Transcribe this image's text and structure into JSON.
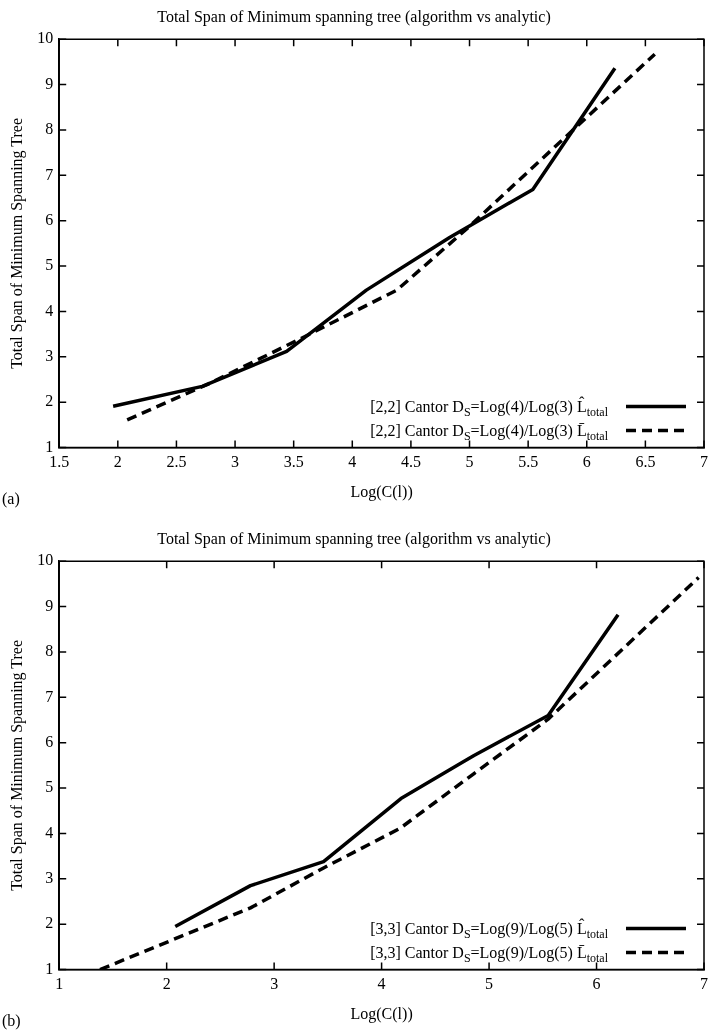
{
  "chart_data": [
    {
      "type": "line",
      "title": "Total Span of Minimum spanning tree (algorithm vs analytic)",
      "xlabel": "Log(C(l))",
      "ylabel": "Total Span of Minimum Spanning Tree",
      "xlim": [
        1.5,
        7
      ],
      "xticks": [
        1.5,
        2,
        2.5,
        3,
        3.5,
        4,
        4.5,
        5,
        5.5,
        6,
        6.5,
        7
      ],
      "ylim": [
        1,
        10
      ],
      "yticks": [
        1,
        2,
        3,
        4,
        5,
        6,
        7,
        8,
        9,
        10
      ],
      "legend": "bottom right",
      "marker": "none",
      "annotations": [
        "(a)"
      ],
      "series": [
        {
          "name": "[2,2] Cantor D$_{S}$=Log(4)/Log(3) L̂$_{total}$",
          "color": "#000000",
          "line_style": "solid",
          "x": [
            1.96,
            2.72,
            3.44,
            4.12,
            4.83,
            5.54,
            6.24
          ],
          "values": [
            1.91,
            2.35,
            3.12,
            4.47,
            5.63,
            6.69,
            9.36
          ]
        },
        {
          "name": "[2,2] Cantor D$_{S}$=Log(4)/Log(3) L̄$_{total}$",
          "color": "#000000",
          "line_style": "dashed",
          "x": [
            2.08,
            2.77,
            3.52,
            4.38,
            4.98,
            5.55,
            6.58
          ],
          "values": [
            1.61,
            2.4,
            3.35,
            4.47,
            5.83,
            7.2,
            9.67
          ]
        }
      ]
    },
    {
      "type": "line",
      "title": "Total Span of Minimum spanning tree (algorithm vs analytic)",
      "xlabel": "Log(C(l))",
      "ylabel": "Total Span of Minimum Spanning Tree",
      "xlim": [
        1,
        7
      ],
      "xticks": [
        1,
        2,
        3,
        4,
        5,
        6,
        7
      ],
      "ylim": [
        1,
        10
      ],
      "yticks": [
        1,
        2,
        3,
        4,
        5,
        6,
        7,
        8,
        9,
        10
      ],
      "legend": "bottom right",
      "marker": "none",
      "annotations": [
        "(b)"
      ],
      "series": [
        {
          "name": "[3,3] Cantor D$_{S}$=Log(9)/Log(5) L̂$_{total}$",
          "color": "#000000",
          "line_style": "solid",
          "x": [
            2.08,
            2.78,
            3.46,
            4.18,
            4.86,
            5.55,
            6.2
          ],
          "values": [
            1.95,
            2.85,
            3.38,
            4.77,
            5.72,
            6.6,
            8.82
          ]
        },
        {
          "name": "[3,3] Cantor D$_{S}$=Log(9)/Log(5) L̄$_{total}$",
          "color": "#000000",
          "line_style": "dashed",
          "x": [
            1.38,
            2.08,
            2.78,
            3.46,
            4.17,
            4.86,
            5.55,
            6.95
          ],
          "values": [
            1.0,
            1.68,
            2.36,
            3.24,
            4.11,
            5.32,
            6.52,
            9.64
          ]
        }
      ]
    }
  ]
}
